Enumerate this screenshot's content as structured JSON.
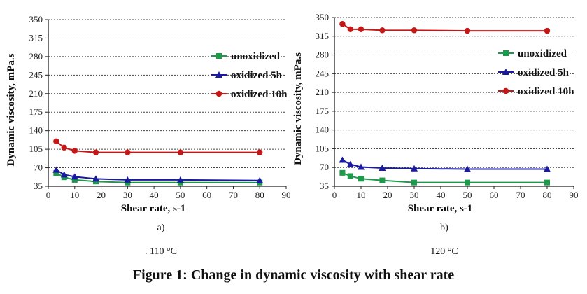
{
  "chart_data": [
    {
      "type": "line",
      "panel_label": "a)",
      "temperature_label": ". 110 °C",
      "xlabel": "Shear rate, s-1",
      "ylabel": "Dynamic viscosity, mPa.s",
      "xlim": [
        0,
        90
      ],
      "ylim": [
        35,
        350
      ],
      "xticks": [
        0,
        10,
        20,
        30,
        40,
        50,
        60,
        70,
        80,
        90
      ],
      "yticks": [
        35,
        70,
        105,
        140,
        175,
        210,
        245,
        280,
        315,
        350
      ],
      "grid": "horizontal-dashed",
      "legend_position": "right",
      "x": [
        3,
        6,
        10,
        18,
        30,
        50,
        80
      ],
      "series": [
        {
          "name": "unoxidized",
          "color": "#1a9a4a",
          "marker": "square",
          "values": [
            60,
            52,
            47,
            44,
            42,
            42,
            42
          ]
        },
        {
          "name": "oxidized 5h",
          "color": "#1a1aa0",
          "marker": "triangle",
          "values": [
            66,
            57,
            53,
            49,
            47,
            47,
            46
          ]
        },
        {
          "name": "oxidized 10h",
          "color": "#c41818",
          "marker": "circle",
          "values": [
            120,
            108,
            102,
            99,
            99,
            99,
            99
          ]
        }
      ]
    },
    {
      "type": "line",
      "panel_label": "b)",
      "temperature_label": "120 °C",
      "xlabel": "Shear rate, s-1",
      "ylabel": "Dynamic viscosity, mPa.s",
      "xlim": [
        0,
        90
      ],
      "ylim": [
        35,
        350
      ],
      "xticks": [
        0,
        10,
        20,
        30,
        40,
        50,
        60,
        70,
        80,
        90
      ],
      "yticks": [
        35,
        70,
        105,
        140,
        175,
        210,
        245,
        280,
        315,
        350
      ],
      "grid": "horizontal-dashed",
      "legend_position": "right",
      "x": [
        3,
        6,
        10,
        18,
        30,
        50,
        80
      ],
      "series": [
        {
          "name": "unoxidized",
          "color": "#1a9a4a",
          "marker": "square",
          "values": [
            60,
            54,
            49,
            46,
            42,
            42,
            42
          ]
        },
        {
          "name": "oxidized 5h",
          "color": "#1a1aa0",
          "marker": "triangle",
          "values": [
            84,
            76,
            71,
            69,
            68,
            67,
            67
          ]
        },
        {
          "name": "oxidized 10h",
          "color": "#c41818",
          "marker": "circle",
          "values": [
            338,
            328,
            328,
            326,
            326,
            325,
            325
          ]
        }
      ]
    }
  ],
  "figure_caption": "Figure 1: Change in dynamic viscosity with shear rate"
}
